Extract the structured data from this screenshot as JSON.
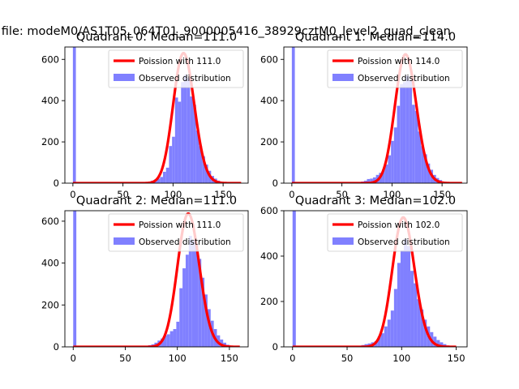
{
  "figure": {
    "suptitle": "n file: modeM0/AS1T05_064T01_9000005416_38929cztM0_level2_quad_clean"
  },
  "chart_data": [
    {
      "type": "bar",
      "title": "Quadrant 0: Median=111.0",
      "xlim": [
        -8,
        175
      ],
      "ylim": [
        0,
        660
      ],
      "xticks": [
        0,
        50,
        100,
        150
      ],
      "yticks": [
        0,
        200,
        400,
        600
      ],
      "bin_width": 3,
      "series": [
        {
          "name": "Poission with 111.0",
          "kind": "line",
          "color": "#ff0000",
          "lambda": 111.0,
          "x_range": [
            0,
            168
          ]
        },
        {
          "name": "Observed distribution",
          "kind": "hist",
          "color": "#8080ff",
          "bins": [
            [
              0,
              660
            ],
            [
              72,
              5
            ],
            [
              75,
              8
            ],
            [
              78,
              12
            ],
            [
              81,
              18
            ],
            [
              84,
              22
            ],
            [
              87,
              30
            ],
            [
              90,
              55
            ],
            [
              93,
              75
            ],
            [
              96,
              180
            ],
            [
              99,
              225
            ],
            [
              102,
              415
            ],
            [
              105,
              395
            ],
            [
              108,
              490
            ],
            [
              111,
              525
            ],
            [
              114,
              510
            ],
            [
              117,
              420
            ],
            [
              120,
              380
            ],
            [
              123,
              255
            ],
            [
              126,
              180
            ],
            [
              129,
              130
            ],
            [
              132,
              90
            ],
            [
              135,
              60
            ],
            [
              138,
              35
            ],
            [
              141,
              22
            ],
            [
              144,
              12
            ],
            [
              147,
              6
            ],
            [
              150,
              3
            ]
          ]
        }
      ],
      "legend": "upper right"
    },
    {
      "type": "bar",
      "title": "Quadrant 1: Median=114.0",
      "xlim": [
        -8,
        175
      ],
      "ylim": [
        0,
        660
      ],
      "xticks": [
        0,
        50,
        100,
        150
      ],
      "yticks": [
        0,
        200,
        400,
        600
      ],
      "bin_width": 3,
      "series": [
        {
          "name": "Poission with 114.0",
          "kind": "line",
          "color": "#ff0000",
          "lambda": 114.0,
          "x_range": [
            0,
            170
          ]
        },
        {
          "name": "Observed distribution",
          "kind": "hist",
          "color": "#8080ff",
          "bins": [
            [
              0,
              660
            ],
            [
              66,
              5
            ],
            [
              69,
              8
            ],
            [
              72,
              12
            ],
            [
              75,
              20
            ],
            [
              78,
              22
            ],
            [
              81,
              28
            ],
            [
              84,
              40
            ],
            [
              87,
              50
            ],
            [
              90,
              65
            ],
            [
              93,
              90
            ],
            [
              96,
              135
            ],
            [
              99,
              205
            ],
            [
              102,
              270
            ],
            [
              105,
              375
            ],
            [
              108,
              480
            ],
            [
              111,
              490
            ],
            [
              114,
              520
            ],
            [
              117,
              500
            ],
            [
              120,
              380
            ],
            [
              123,
              350
            ],
            [
              126,
              250
            ],
            [
              129,
              180
            ],
            [
              132,
              140
            ],
            [
              135,
              95
            ],
            [
              138,
              65
            ],
            [
              141,
              40
            ],
            [
              144,
              25
            ],
            [
              147,
              15
            ],
            [
              150,
              8
            ],
            [
              153,
              4
            ]
          ]
        }
      ],
      "legend": "upper right"
    },
    {
      "type": "bar",
      "title": "Quadrant 2: Median=111.0",
      "xlim": [
        -8,
        168
      ],
      "ylim": [
        0,
        650
      ],
      "xticks": [
        0,
        50,
        100,
        150
      ],
      "yticks": [
        0,
        200,
        400,
        600
      ],
      "bin_width": 3,
      "series": [
        {
          "name": "Poission with 111.0",
          "kind": "line",
          "color": "#ff0000",
          "lambda": 111.0,
          "x_range": [
            0,
            160
          ]
        },
        {
          "name": "Observed distribution",
          "kind": "hist",
          "color": "#8080ff",
          "bins": [
            [
              0,
              650
            ],
            [
              72,
              8
            ],
            [
              75,
              12
            ],
            [
              78,
              20
            ],
            [
              81,
              30
            ],
            [
              84,
              40
            ],
            [
              87,
              55
            ],
            [
              90,
              60
            ],
            [
              93,
              75
            ],
            [
              96,
              85
            ],
            [
              99,
              120
            ],
            [
              102,
              280
            ],
            [
              105,
              375
            ],
            [
              108,
              440
            ],
            [
              111,
              530
            ],
            [
              114,
              510
            ],
            [
              117,
              490
            ],
            [
              120,
              420
            ],
            [
              123,
              330
            ],
            [
              126,
              250
            ],
            [
              129,
              180
            ],
            [
              132,
              125
            ],
            [
              135,
              85
            ],
            [
              138,
              55
            ],
            [
              141,
              35
            ],
            [
              144,
              20
            ],
            [
              147,
              10
            ],
            [
              150,
              5
            ]
          ]
        }
      ],
      "legend": "upper right"
    },
    {
      "type": "bar",
      "title": "Quadrant 3: Median=102.0",
      "xlim": [
        -8,
        160
      ],
      "ylim": [
        0,
        600
      ],
      "xticks": [
        0,
        50,
        100,
        150
      ],
      "yticks": [
        0,
        200,
        400,
        600
      ],
      "bin_width": 3,
      "series": [
        {
          "name": "Poission with 102.0",
          "kind": "line",
          "color": "#ff0000",
          "lambda": 102.0,
          "x_range": [
            0,
            150
          ]
        },
        {
          "name": "Observed distribution",
          "kind": "hist",
          "color": "#8080ff",
          "bins": [
            [
              0,
              600
            ],
            [
              60,
              5
            ],
            [
              63,
              8
            ],
            [
              66,
              12
            ],
            [
              69,
              15
            ],
            [
              72,
              20
            ],
            [
              75,
              25
            ],
            [
              78,
              45
            ],
            [
              81,
              60
            ],
            [
              84,
              90
            ],
            [
              87,
              120
            ],
            [
              90,
              160
            ],
            [
              93,
              255
            ],
            [
              96,
              370
            ],
            [
              99,
              425
            ],
            [
              102,
              475
            ],
            [
              105,
              445
            ],
            [
              108,
              335
            ],
            [
              111,
              280
            ],
            [
              114,
              210
            ],
            [
              117,
              165
            ],
            [
              120,
              120
            ],
            [
              123,
              90
            ],
            [
              126,
              65
            ],
            [
              129,
              45
            ],
            [
              132,
              30
            ],
            [
              135,
              20
            ],
            [
              138,
              12
            ],
            [
              141,
              6
            ]
          ]
        }
      ],
      "legend": "upper right"
    }
  ]
}
